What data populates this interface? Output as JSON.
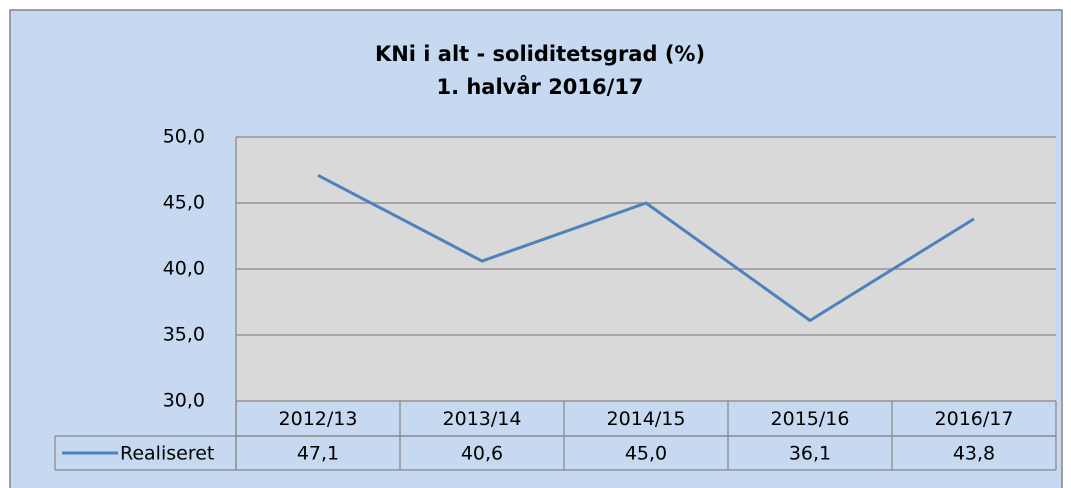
{
  "chart_data": {
    "type": "line",
    "title": "KNi i alt - soliditetsgrad  (%)",
    "subtitle": "1. halvår 2016/17",
    "categories": [
      "2012/13",
      "2013/14",
      "2014/15",
      "2015/16",
      "2016/17"
    ],
    "series": [
      {
        "name": "Realiseret",
        "color": "#4f81bd",
        "values": [
          47.1,
          40.6,
          45.0,
          36.1,
          43.8
        ],
        "value_labels": [
          "47,1",
          "40,6",
          "45,0",
          "36,1",
          "43,8"
        ]
      }
    ],
    "ylim": [
      30,
      50
    ],
    "yticks": [
      {
        "value": 30,
        "label": "30,0"
      },
      {
        "value": 35,
        "label": "35,0"
      },
      {
        "value": 40,
        "label": "40,0"
      },
      {
        "value": 45,
        "label": "45,0"
      },
      {
        "value": 50,
        "label": "50,0"
      }
    ],
    "grid": true
  }
}
